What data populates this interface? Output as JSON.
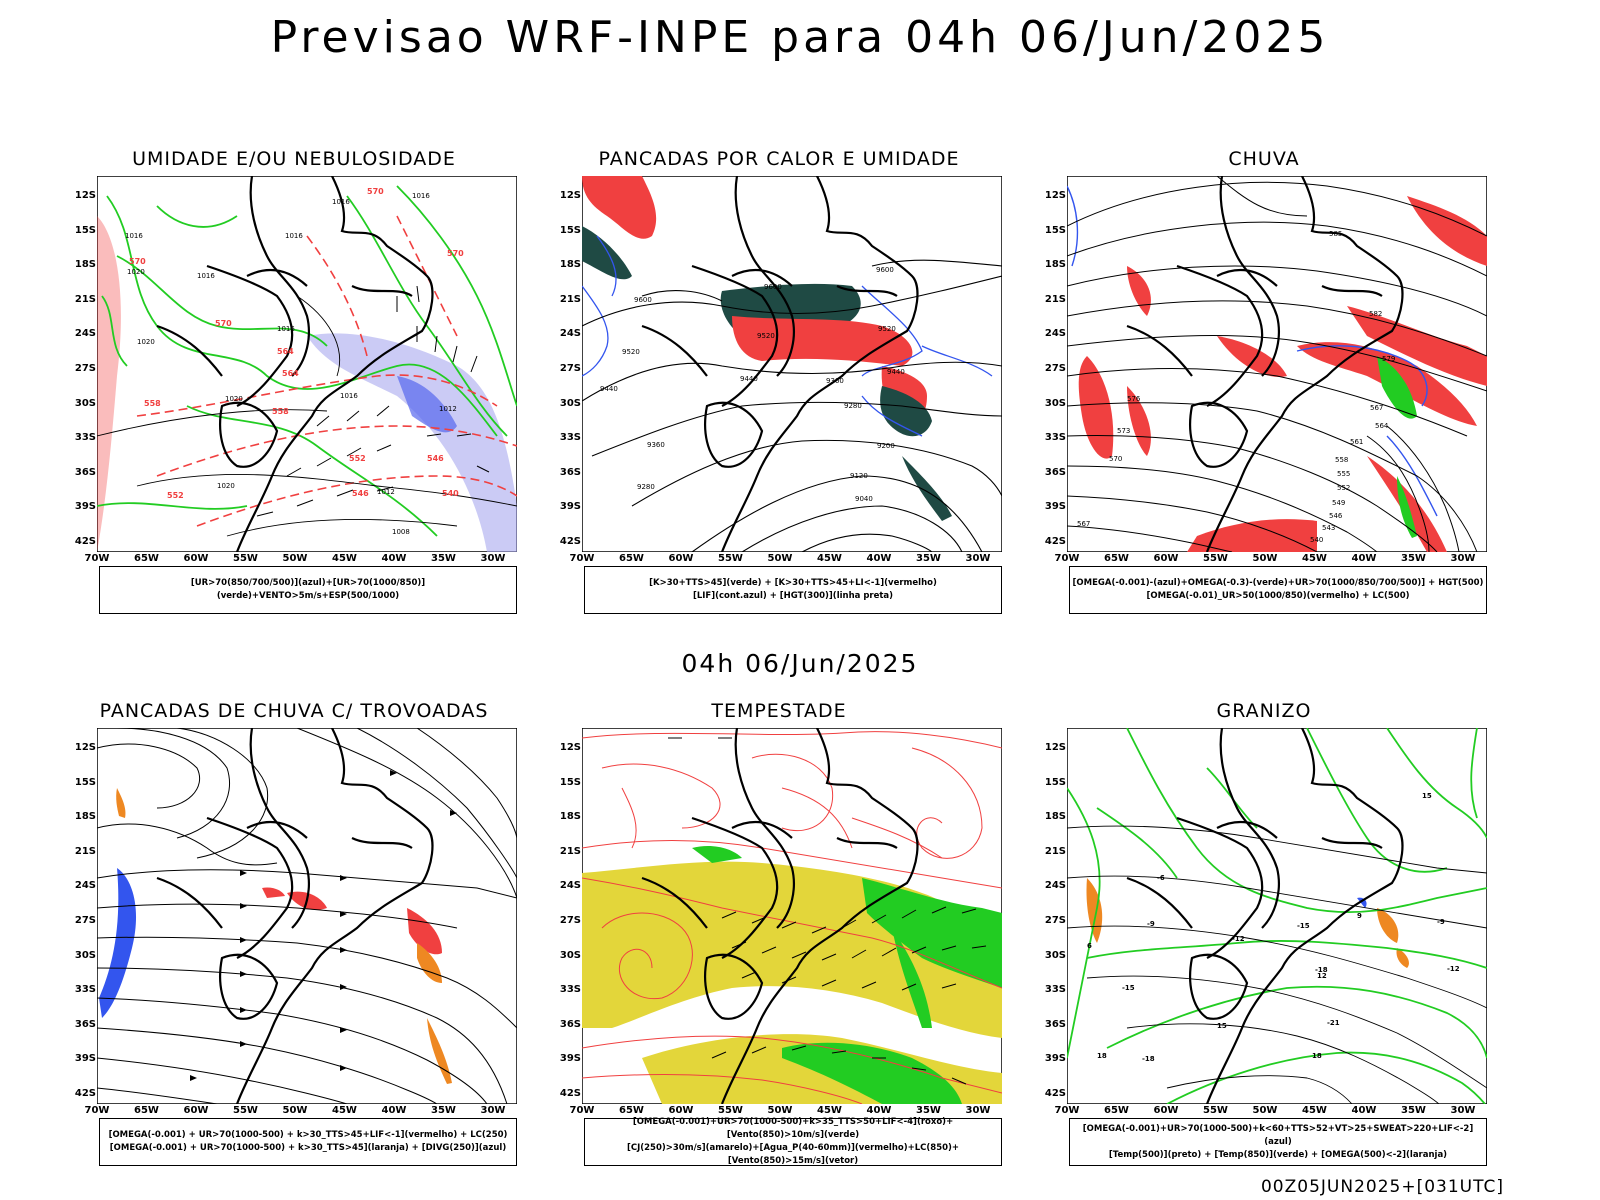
{
  "title": "Previsao WRF-INPE  para 04h 06/Jun/2025",
  "mid_date": "04h 06/Jun/2025",
  "footer": "00Z05JUN2025+[031UTC]",
  "axes": {
    "lat_labels": [
      "12S",
      "15S",
      "18S",
      "21S",
      "24S",
      "27S",
      "30S",
      "33S",
      "36S",
      "39S",
      "42S"
    ],
    "lon_labels": [
      "70W",
      "65W",
      "60W",
      "55W",
      "50W",
      "45W",
      "40W",
      "35W",
      "30W"
    ]
  },
  "colors": {
    "red": "#f04040",
    "green": "#22cc22",
    "blue": "#3355ee",
    "darkgreen": "#1f4a44",
    "orange": "#ee8822",
    "yellow": "#e3d63a",
    "lavender": "#a8a8ee",
    "black": "#000000"
  },
  "panels": [
    {
      "title": "UMIDADE E/OU NEBULOSIDADE",
      "legend": [
        "[UR>70(850/700/500)](azul)+[UR>70(1000/850)](verde)+VENTO>5m/s+ESP(500/1000)"
      ],
      "contours": [
        "1016",
        "1016",
        "1016",
        "1016",
        "1020",
        "1020",
        "1016",
        "1012",
        "1012",
        "1008",
        "1016",
        "1020",
        "1016",
        "1020"
      ],
      "red_labels": [
        "570",
        "570",
        "570",
        "570",
        "564",
        "558",
        "552",
        "546",
        "564",
        "558",
        "552",
        "546",
        "540"
      ]
    },
    {
      "title": "PANCADAS POR CALOR E UMIDADE",
      "legend": [
        "[K>30+TTS>45](verde) + [K>30+TTS>45+LI<-1](vermelho)",
        "[LIF](cont.azul) + [HGT(300)](linha preta)"
      ],
      "contours": [
        "9600",
        "9600",
        "9600",
        "9520",
        "9520",
        "9520",
        "9440",
        "9440",
        "9440",
        "9360",
        "9360",
        "9280",
        "9280",
        "9200",
        "9120",
        "9040"
      ]
    },
    {
      "title": "CHUVA",
      "legend": [
        "[OMEGA(-0.001)-(azul)+OMEGA(-0.3)-(verde)+UR>70(1000/850/700/500)] + HGT(500)",
        "[OMEGA(-0.01)_UR>50(1000/850)(vermelho) + LC(500)"
      ],
      "contours": [
        "585",
        "582",
        "579",
        "576",
        "573",
        "570",
        "567",
        "564",
        "561",
        "558",
        "555",
        "552",
        "549",
        "546",
        "543",
        "540",
        "567"
      ]
    },
    {
      "title": "PANCADAS DE CHUVA C/ TROVOADAS",
      "legend": [
        "[OMEGA(-0.001) + UR>70(1000-500) + k>30_TTS>45+LIF<-1](vermelho) + LC(250)",
        "[OMEGA(-0.001) + UR>70(1000-500) + k>30_TTS>45](laranja) + [DIVG(250)](azul)"
      ]
    },
    {
      "title": "TEMPESTADE",
      "legend": [
        "[OMEGA(-0.001)+UR>70(1000-500)+k>35_TTS>50+LIF<-4](roxo)+[Vento(850)>10m/s](verde)",
        "[CJ(250)>30m/s](amarelo)+[Agua_P(40-60mm)](vermelho)+LC(850)+[Vento(850)>15m/s](vetor)"
      ]
    },
    {
      "title": "GRANIZO",
      "legend": [
        "[OMEGA(-0.001)+UR>70(1000-500)+k<60+TTS>52+VT>25+SWEAT>220+LIF<-2](azul)",
        "[Temp(500)](preto) + [Temp(850)](verde) + [OMEGA(500)<-2](laranja)"
      ],
      "contours": [
        "-6",
        "-9",
        "-12",
        "-15",
        "-18",
        "-21",
        "-18",
        "-15",
        "-12",
        "-9",
        "18",
        "15",
        "12",
        "9",
        "6",
        "18",
        "15"
      ]
    }
  ]
}
